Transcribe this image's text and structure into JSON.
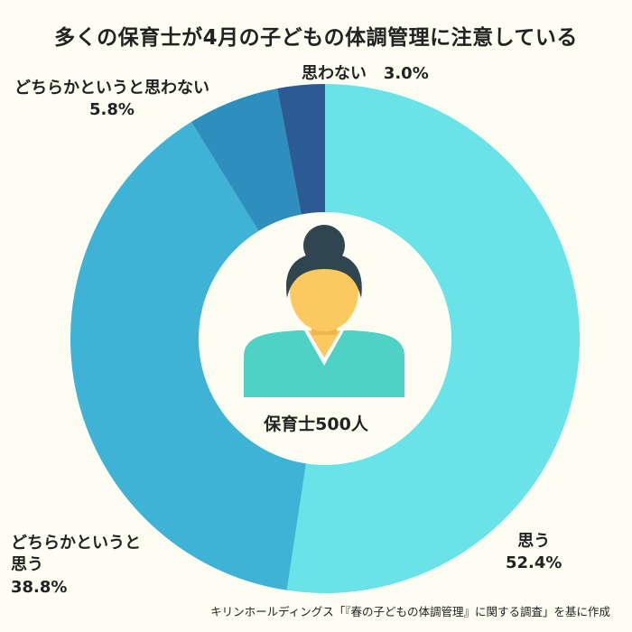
{
  "title": "多くの保育士が4月の子どもの体調管理に注意している",
  "center_label": "保育士500人",
  "source": "キリンホールディングス「『春の子どもの体調管理』に関する調査」を基に作成",
  "colors": {
    "background": "#fdfdf2",
    "slice_omou": "#6ae3e8",
    "slice_dochiraka_omou": "#3fb3d6",
    "slice_dochiraka_omowanai": "#2e8fbf",
    "slice_omowanai": "#2c5a94",
    "skin": "#fbc95f",
    "hair": "#2f4550",
    "shirt": "#4fd1c5"
  },
  "chart_data": {
    "type": "pie",
    "title": "多くの保育士が4月の子どもの体調管理に注意している",
    "categories": [
      "思う",
      "どちらかというと思う",
      "どちらかというと思わない",
      "思わない"
    ],
    "values": [
      52.4,
      38.8,
      5.8,
      3.0
    ],
    "unit": "%",
    "labels": [
      {
        "category_lines": [
          "思う"
        ],
        "value_text": "52.4%"
      },
      {
        "category_lines": [
          "どちらかというと",
          "思う"
        ],
        "value_text": "38.8%"
      },
      {
        "category_lines": [
          "どちらかというと思わない"
        ],
        "value_text": "5.8%"
      },
      {
        "category_lines": [
          "思わない"
        ],
        "value_text": "3.0%"
      }
    ],
    "donut": true,
    "center_text": "保育士500人"
  }
}
